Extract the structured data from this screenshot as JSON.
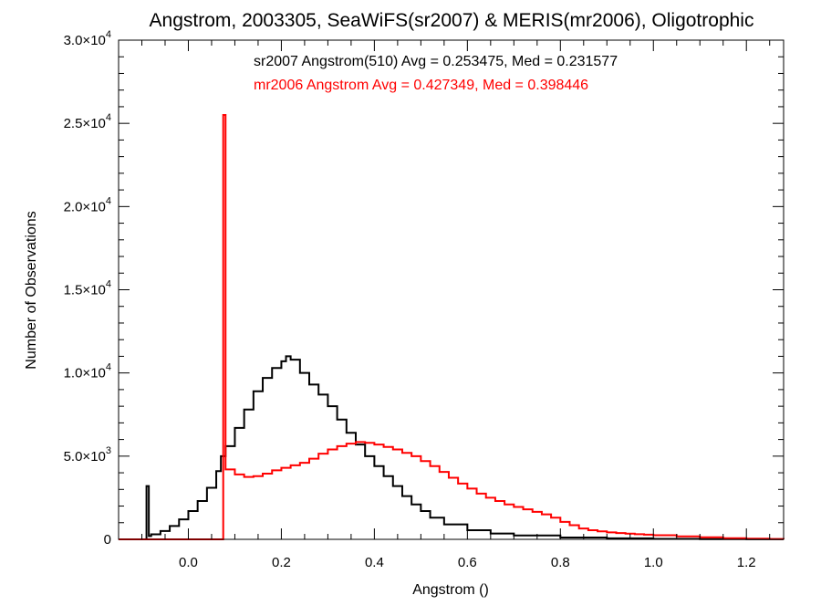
{
  "chart_data": {
    "type": "step-histogram",
    "title": "Angstrom, 2003305, SeaWiFS(sr2007) & MERIS(mr2006), Oligotrophic",
    "xlabel": "Angstrom ()",
    "ylabel": "Number of Observations",
    "xlim": [
      -0.15,
      1.28
    ],
    "ylim": [
      0,
      30000
    ],
    "x_ticks": [
      {
        "value": 0.0,
        "label": "0.0"
      },
      {
        "value": 0.2,
        "label": "0.2"
      },
      {
        "value": 0.4,
        "label": "0.4"
      },
      {
        "value": 0.6,
        "label": "0.6"
      },
      {
        "value": 0.8,
        "label": "0.8"
      },
      {
        "value": 1.0,
        "label": "1.0"
      },
      {
        "value": 1.2,
        "label": "1.2"
      }
    ],
    "y_ticks": [
      {
        "value": 0,
        "mant": "0",
        "exp": ""
      },
      {
        "value": 5000,
        "mant": "5.0×10",
        "exp": "3"
      },
      {
        "value": 10000,
        "mant": "1.0×10",
        "exp": "4"
      },
      {
        "value": 15000,
        "mant": "1.5×10",
        "exp": "4"
      },
      {
        "value": 20000,
        "mant": "2.0×10",
        "exp": "4"
      },
      {
        "value": 25000,
        "mant": "2.5×10",
        "exp": "4"
      },
      {
        "value": 30000,
        "mant": "3.0×10",
        "exp": "4"
      }
    ],
    "grid": false,
    "legend": "top",
    "series": [
      {
        "label": "sr2007 Angstrom(510) Avg = 0.253475, Med = 0.231577",
        "color": "#000000",
        "points": [
          [
            -0.15,
            0
          ],
          [
            -0.09,
            0
          ],
          [
            -0.09,
            3200
          ],
          [
            -0.085,
            200
          ],
          [
            -0.08,
            300
          ],
          [
            -0.06,
            500
          ],
          [
            -0.04,
            800
          ],
          [
            -0.02,
            1200
          ],
          [
            0.0,
            1700
          ],
          [
            0.02,
            2300
          ],
          [
            0.04,
            3100
          ],
          [
            0.06,
            4100
          ],
          [
            0.07,
            5000
          ],
          [
            0.08,
            5600
          ],
          [
            0.1,
            6700
          ],
          [
            0.12,
            7800
          ],
          [
            0.14,
            8900
          ],
          [
            0.16,
            9700
          ],
          [
            0.18,
            10300
          ],
          [
            0.2,
            10700
          ],
          [
            0.21,
            11000
          ],
          [
            0.22,
            10800
          ],
          [
            0.24,
            10000
          ],
          [
            0.26,
            9300
          ],
          [
            0.28,
            8700
          ],
          [
            0.3,
            8000
          ],
          [
            0.32,
            7200
          ],
          [
            0.34,
            6400
          ],
          [
            0.36,
            5700
          ],
          [
            0.38,
            5000
          ],
          [
            0.4,
            4400
          ],
          [
            0.42,
            3800
          ],
          [
            0.44,
            3200
          ],
          [
            0.46,
            2600
          ],
          [
            0.48,
            2100
          ],
          [
            0.5,
            1700
          ],
          [
            0.52,
            1300
          ],
          [
            0.55,
            900
          ],
          [
            0.6,
            550
          ],
          [
            0.65,
            350
          ],
          [
            0.7,
            230
          ],
          [
            0.8,
            110
          ],
          [
            0.9,
            60
          ],
          [
            1.0,
            30
          ],
          [
            1.1,
            15
          ],
          [
            1.2,
            8
          ],
          [
            1.28,
            5
          ]
        ]
      },
      {
        "label": "mr2006 Angstrom Avg = 0.427349, Med = 0.398446",
        "color": "#ff0000",
        "points": [
          [
            -0.15,
            0
          ],
          [
            0.075,
            0
          ],
          [
            0.075,
            25500
          ],
          [
            0.08,
            4200
          ],
          [
            0.1,
            3900
          ],
          [
            0.12,
            3750
          ],
          [
            0.14,
            3800
          ],
          [
            0.16,
            3950
          ],
          [
            0.18,
            4150
          ],
          [
            0.2,
            4300
          ],
          [
            0.22,
            4450
          ],
          [
            0.24,
            4600
          ],
          [
            0.26,
            4850
          ],
          [
            0.28,
            5150
          ],
          [
            0.3,
            5400
          ],
          [
            0.32,
            5600
          ],
          [
            0.34,
            5750
          ],
          [
            0.36,
            5850
          ],
          [
            0.38,
            5800
          ],
          [
            0.4,
            5700
          ],
          [
            0.42,
            5550
          ],
          [
            0.44,
            5400
          ],
          [
            0.46,
            5200
          ],
          [
            0.48,
            5000
          ],
          [
            0.5,
            4700
          ],
          [
            0.52,
            4400
          ],
          [
            0.54,
            4050
          ],
          [
            0.56,
            3700
          ],
          [
            0.58,
            3350
          ],
          [
            0.6,
            3050
          ],
          [
            0.62,
            2750
          ],
          [
            0.64,
            2500
          ],
          [
            0.66,
            2300
          ],
          [
            0.68,
            2100
          ],
          [
            0.7,
            1950
          ],
          [
            0.72,
            1800
          ],
          [
            0.74,
            1650
          ],
          [
            0.76,
            1500
          ],
          [
            0.78,
            1300
          ],
          [
            0.8,
            1050
          ],
          [
            0.82,
            850
          ],
          [
            0.84,
            650
          ],
          [
            0.86,
            550
          ],
          [
            0.88,
            480
          ],
          [
            0.9,
            420
          ],
          [
            0.92,
            380
          ],
          [
            0.94,
            340
          ],
          [
            0.96,
            310
          ],
          [
            0.98,
            280
          ],
          [
            1.0,
            250
          ],
          [
            1.05,
            180
          ],
          [
            1.1,
            120
          ],
          [
            1.15,
            70
          ],
          [
            1.2,
            40
          ],
          [
            1.25,
            20
          ],
          [
            1.28,
            10
          ]
        ]
      }
    ]
  }
}
